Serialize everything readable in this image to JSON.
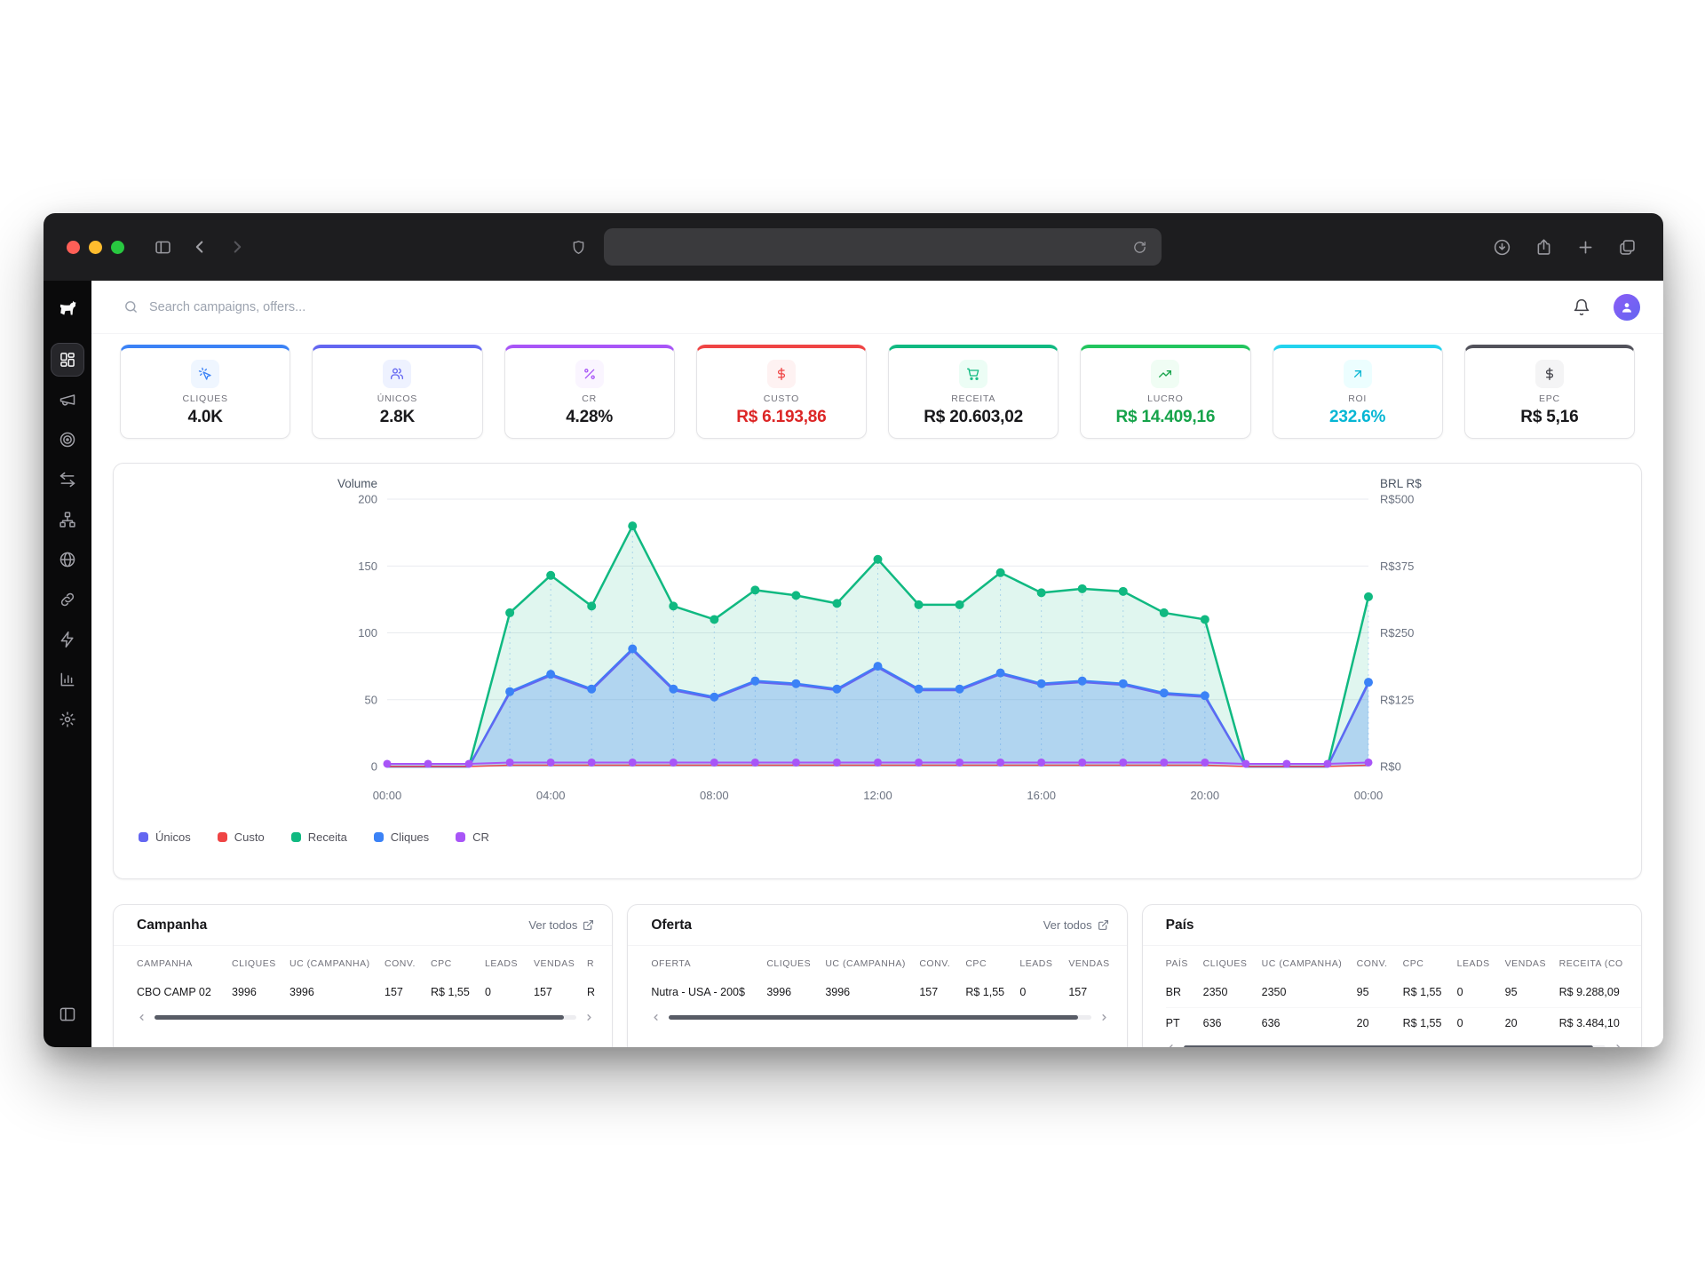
{
  "topbar": {
    "search_placeholder": "Search campaigns, offers..."
  },
  "sidebar": {
    "items": [
      {
        "id": "dashboard",
        "icon": "dashboard-icon",
        "active": true
      },
      {
        "id": "campaigns",
        "icon": "megaphone-icon",
        "active": false
      },
      {
        "id": "offers",
        "icon": "target-icon",
        "active": false
      },
      {
        "id": "swap",
        "icon": "swap-icon",
        "active": false
      },
      {
        "id": "flows",
        "icon": "sitemap-icon",
        "active": false
      },
      {
        "id": "domains",
        "icon": "globe-icon",
        "active": false
      },
      {
        "id": "links",
        "icon": "link-icon",
        "active": false
      },
      {
        "id": "integrations",
        "icon": "zap-icon",
        "active": false
      },
      {
        "id": "reports",
        "icon": "bar-chart-icon",
        "active": false
      },
      {
        "id": "settings",
        "icon": "settings-icon",
        "active": false
      }
    ]
  },
  "stats": [
    {
      "label": "CLIQUES",
      "value": "4.0K",
      "accent": "#3b82f6",
      "icon": "mouse-pointer-click-icon",
      "icon_color": "#3b82f6",
      "icon_bg": "#eff6ff",
      "value_color": "#18181b"
    },
    {
      "label": "ÚNICOS",
      "value": "2.8K",
      "accent": "#6366f1",
      "icon": "users-icon",
      "icon_color": "#6366f1",
      "icon_bg": "#eef2ff",
      "value_color": "#18181b"
    },
    {
      "label": "CR",
      "value": "4.28%",
      "accent": "#a855f7",
      "icon": "percent-icon",
      "icon_color": "#a855f7",
      "icon_bg": "#faf5ff",
      "value_color": "#18181b"
    },
    {
      "label": "CUSTO",
      "value": "R$ 6.193,86",
      "accent": "#ef4444",
      "icon": "dollar-icon",
      "icon_color": "#ef4444",
      "icon_bg": "#fef2f2",
      "value_color": "#dc2626"
    },
    {
      "label": "RECEITA",
      "value": "R$ 20.603,02",
      "accent": "#10b981",
      "icon": "cart-icon",
      "icon_color": "#10b981",
      "icon_bg": "#ecfdf5",
      "value_color": "#18181b"
    },
    {
      "label": "LUCRO",
      "value": "R$ 14.409,16",
      "accent": "#22c55e",
      "icon": "trending-up-icon",
      "icon_color": "#16a34a",
      "icon_bg": "#f0fdf4",
      "value_color": "#16a34a"
    },
    {
      "label": "ROI",
      "value": "232.6%",
      "accent": "#22d3ee",
      "icon": "arrow-up-right-icon",
      "icon_color": "#06b6d4",
      "icon_bg": "#ecfeff",
      "value_color": "#06b6d4"
    },
    {
      "label": "EPC",
      "value": "R$ 5,16",
      "accent": "#52525b",
      "icon": "dollar-icon",
      "icon_color": "#3f3f46",
      "icon_bg": "#f4f4f5",
      "value_color": "#18181b"
    }
  ],
  "chart_data": {
    "type": "area",
    "x_ticks": [
      "00:00",
      "04:00",
      "08:00",
      "12:00",
      "16:00",
      "20:00",
      "00:00"
    ],
    "left_axis": {
      "title": "Volume",
      "ticks": [
        0,
        50,
        100,
        150,
        200
      ],
      "max": 200
    },
    "right_axis": {
      "title": "BRL R$",
      "ticks": [
        "R$0",
        "R$125",
        "R$250",
        "R$375",
        "R$500"
      ]
    },
    "series": [
      {
        "name": "Receita",
        "color": "#10b981",
        "fill": "rgba(16,185,129,0.13)",
        "width": 2.5,
        "dots": "nonzero",
        "dot_r": 5,
        "values": [
          0,
          0,
          0,
          115,
          143,
          120,
          180,
          120,
          110,
          132,
          128,
          122,
          155,
          121,
          121,
          145,
          130,
          133,
          131,
          115,
          110,
          0,
          0,
          0,
          127
        ]
      },
      {
        "name": "Cliques",
        "color": "#3b82f6",
        "fill": "rgba(59,130,246,0.28)",
        "width": 2.5,
        "dots": "nonzero",
        "dot_r": 5,
        "values": [
          0,
          0,
          0,
          56,
          69,
          58,
          88,
          58,
          52,
          64,
          62,
          58,
          75,
          58,
          58,
          70,
          62,
          64,
          62,
          55,
          53,
          0,
          0,
          0,
          63
        ]
      },
      {
        "name": "Únicos",
        "color": "#6366f1",
        "width": 2,
        "dots": "none",
        "values": [
          0,
          0,
          0,
          55,
          68,
          57,
          87,
          57,
          51,
          63,
          61,
          57,
          74,
          57,
          57,
          69,
          61,
          63,
          61,
          54,
          52,
          0,
          0,
          0,
          62
        ]
      },
      {
        "name": "Custo",
        "color": "#ef4444",
        "width": 1.5,
        "dots": "none",
        "values": [
          0,
          0,
          0,
          1,
          1,
          1,
          1,
          1,
          1,
          1,
          1,
          1,
          1,
          1,
          1,
          1,
          1,
          1,
          1,
          1,
          1,
          0,
          0,
          0,
          1
        ]
      },
      {
        "name": "CR",
        "color": "#a855f7",
        "width": 2,
        "dots": "all",
        "dot_r": 4.5,
        "values": [
          2,
          2,
          2,
          3,
          3,
          3,
          3,
          3,
          3,
          3,
          3,
          3,
          3,
          3,
          3,
          3,
          3,
          3,
          3,
          3,
          3,
          2,
          2,
          2,
          3
        ]
      }
    ],
    "legend": [
      {
        "label": "Únicos",
        "color": "#6366f1"
      },
      {
        "label": "Custo",
        "color": "#ef4444"
      },
      {
        "label": "Receita",
        "color": "#10b981"
      },
      {
        "label": "Cliques",
        "color": "#3b82f6"
      },
      {
        "label": "CR",
        "color": "#a855f7"
      }
    ]
  },
  "cards": {
    "campanha": {
      "title": "Campanha",
      "link_label": "Ver todos",
      "cols": [
        0,
        107,
        172,
        279,
        331,
        392,
        447,
        507
      ],
      "headers": [
        "CAMPANHA",
        "CLIQUES",
        "UC (CAMPANHA)",
        "CONV.",
        "CPC",
        "LEADS",
        "VENDAS",
        "R"
      ],
      "rows": [
        [
          "CBO CAMP 02",
          "3996",
          "3996",
          "157",
          "R$ 1,55",
          "0",
          "157",
          "R"
        ]
      ]
    },
    "oferta": {
      "title": "Oferta",
      "link_label": "Ver todos",
      "cols": [
        0,
        130,
        196,
        302,
        354,
        415,
        470
      ],
      "headers": [
        "OFERTA",
        "CLIQUES",
        "UC (CAMPANHA)",
        "CONV.",
        "CPC",
        "LEADS",
        "VENDAS"
      ],
      "rows": [
        [
          "Nutra - USA - 200$",
          "3996",
          "3996",
          "157",
          "R$ 1,55",
          "0",
          "157"
        ]
      ]
    },
    "pais": {
      "title": "País",
      "cols": [
        0,
        42,
        108,
        215,
        267,
        328,
        382,
        443
      ],
      "headers": [
        "PAÍS",
        "CLIQUES",
        "UC (CAMPANHA)",
        "CONV.",
        "CPC",
        "LEADS",
        "VENDAS",
        "RECEITA (CO"
      ],
      "rows": [
        [
          "BR",
          "2350",
          "2350",
          "95",
          "R$ 1,55",
          "0",
          "95",
          "R$ 9.288,09"
        ],
        [
          "PT",
          "636",
          "636",
          "20",
          "R$ 1,55",
          "0",
          "20",
          "R$ 3.484,10"
        ]
      ]
    }
  }
}
